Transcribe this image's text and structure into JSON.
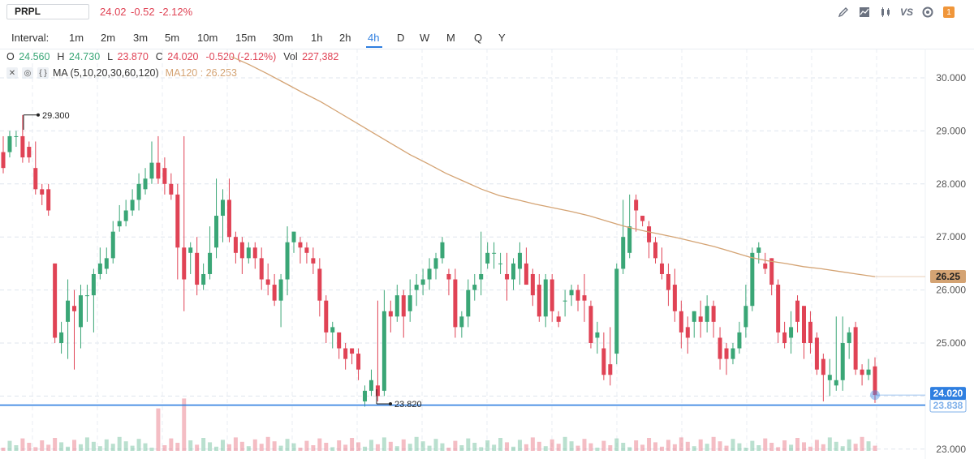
{
  "header": {
    "symbol": "PRPL",
    "last": "24.02",
    "change": "-0.52",
    "change_pct": "-2.12%"
  },
  "toolbar_icons": [
    "pencil-icon",
    "area-chart-icon",
    "candles-icon",
    "compare-vs-icon",
    "settings-icon",
    "notification-badge-icon"
  ],
  "toolbar": {
    "vs_label": "VS",
    "badge_count": "1"
  },
  "intervals": {
    "label": "Interval:",
    "items": [
      "1m",
      "2m",
      "3m",
      "5m",
      "10m",
      "15m",
      "30m",
      "1h",
      "2h",
      "4h",
      "D",
      "W",
      "M",
      "Q",
      "Y"
    ],
    "active": "4h"
  },
  "ohlc": {
    "o_label": "O",
    "o": "24.560",
    "h_label": "H",
    "h": "24.730",
    "l_label": "L",
    "l": "23.870",
    "c_label": "C",
    "c": "24.020",
    "chg": "-0.520 (-2.12%)",
    "vol_label": "Vol",
    "vol": "227,382"
  },
  "indicator": {
    "name": "MA (5,10,20,30,60,120)",
    "ma120_label": "MA120 : 26.253"
  },
  "colors": {
    "up": "#3aa676",
    "down": "#e04355",
    "ma120": "#d4a373",
    "accent": "#2f7fe0"
  },
  "chart_data": {
    "type": "candlestick",
    "y_ticks": [
      "30.000",
      "29.000",
      "28.000",
      "27.000",
      "26.000",
      "25.000",
      "23.000"
    ],
    "ylim": [
      22.9,
      30.4
    ],
    "price_tag_ma": "26.25",
    "price_tag_last": "24.020",
    "price_tag_line": "23.838",
    "high_annotation": "29.300",
    "low_annotation": "23.820",
    "horizontal_line": 23.83,
    "ma120": [
      30.4,
      30.25,
      30.08,
      29.9,
      29.72,
      29.55,
      29.35,
      29.15,
      28.95,
      28.75,
      28.55,
      28.38,
      28.2,
      28.05,
      27.9,
      27.78,
      27.7,
      27.62,
      27.55,
      27.48,
      27.4,
      27.3,
      27.2,
      27.12,
      27.05,
      26.98,
      26.9,
      26.82,
      26.72,
      26.62,
      26.55,
      26.5,
      26.44,
      26.4,
      26.35,
      26.3,
      26.253
    ],
    "candles": [
      [
        28.6,
        28.3,
        28.9,
        28.2
      ],
      [
        28.6,
        28.9,
        29.0,
        28.5
      ],
      [
        28.9,
        28.9,
        29.0,
        28.7
      ],
      [
        28.9,
        28.5,
        29.3,
        28.4
      ],
      [
        28.7,
        28.5,
        28.8,
        28.4
      ],
      [
        28.3,
        27.9,
        28.8,
        27.8
      ],
      [
        27.9,
        27.8,
        28.0,
        27.6
      ],
      [
        27.9,
        27.5,
        28.0,
        27.4
      ],
      [
        26.5,
        25.1,
        26.5,
        25.0
      ],
      [
        25.0,
        25.2,
        25.4,
        24.8
      ],
      [
        25.4,
        25.8,
        26.2,
        24.7
      ],
      [
        25.7,
        25.6,
        26.0,
        24.5
      ],
      [
        25.3,
        25.9,
        26.1,
        24.9
      ],
      [
        25.9,
        25.9,
        26.1,
        25.4
      ],
      [
        25.9,
        26.3,
        26.4,
        25.2
      ],
      [
        26.3,
        26.5,
        26.8,
        26.2
      ],
      [
        26.4,
        26.6,
        26.8,
        26.3
      ],
      [
        26.6,
        27.1,
        27.3,
        26.5
      ],
      [
        27.2,
        27.3,
        27.6,
        27.1
      ],
      [
        27.3,
        27.5,
        27.7,
        27.2
      ],
      [
        27.5,
        27.7,
        27.9,
        27.4
      ],
      [
        27.7,
        28.0,
        28.2,
        27.5
      ],
      [
        27.9,
        28.1,
        28.3,
        27.8
      ],
      [
        28.1,
        28.4,
        28.8,
        28.0
      ],
      [
        28.4,
        28.1,
        28.9,
        28.0
      ],
      [
        28.3,
        28.0,
        28.5,
        27.8
      ],
      [
        28.0,
        27.8,
        28.2,
        27.7
      ],
      [
        27.8,
        26.8,
        28.0,
        26.2
      ],
      [
        26.8,
        26.2,
        28.9,
        25.6
      ],
      [
        26.7,
        26.8,
        26.9,
        26.3
      ],
      [
        26.7,
        26.1,
        27.0,
        25.9
      ],
      [
        26.1,
        26.3,
        26.5,
        26.0
      ],
      [
        26.3,
        26.7,
        27.2,
        26.2
      ],
      [
        26.8,
        27.4,
        28.1,
        26.6
      ],
      [
        27.4,
        27.7,
        27.9,
        26.9
      ],
      [
        27.7,
        27.0,
        28.1,
        26.9
      ],
      [
        27.0,
        26.7,
        27.1,
        26.5
      ],
      [
        26.9,
        26.6,
        27.0,
        26.3
      ],
      [
        26.6,
        26.8,
        26.9,
        26.5
      ],
      [
        26.8,
        26.6,
        26.9,
        26.4
      ],
      [
        26.6,
        26.2,
        26.8,
        26.0
      ],
      [
        26.2,
        26.1,
        26.5,
        25.9
      ],
      [
        26.1,
        25.8,
        26.3,
        25.7
      ],
      [
        25.8,
        26.2,
        26.3,
        25.3
      ],
      [
        26.2,
        26.9,
        27.2,
        25.9
      ],
      [
        26.9,
        27.1,
        27.1,
        26.7
      ],
      [
        26.9,
        26.8,
        27.0,
        26.5
      ],
      [
        26.8,
        26.7,
        26.9,
        26.5
      ],
      [
        26.6,
        26.5,
        26.8,
        26.3
      ],
      [
        26.4,
        25.8,
        26.6,
        25.5
      ],
      [
        25.8,
        25.2,
        25.9,
        25.0
      ],
      [
        25.2,
        25.3,
        25.4,
        24.9
      ],
      [
        25.2,
        24.9,
        25.2,
        24.7
      ],
      [
        24.9,
        24.7,
        25.0,
        24.5
      ],
      [
        24.9,
        24.8,
        24.9,
        24.6
      ],
      [
        24.8,
        24.5,
        24.9,
        24.3
      ],
      [
        23.9,
        24.1,
        24.2,
        23.8
      ],
      [
        24.1,
        24.3,
        24.5,
        24.0
      ],
      [
        24.2,
        24.0,
        25.8,
        23.9
      ],
      [
        24.1,
        25.6,
        26.0,
        24.0
      ],
      [
        25.6,
        25.5,
        25.8,
        25.2
      ],
      [
        25.5,
        25.9,
        26.1,
        25.4
      ],
      [
        25.9,
        25.5,
        26.0,
        25.1
      ],
      [
        25.6,
        25.9,
        26.2,
        25.4
      ],
      [
        26.0,
        26.1,
        26.3,
        25.7
      ],
      [
        26.1,
        26.2,
        26.4,
        25.9
      ],
      [
        26.2,
        26.4,
        26.6,
        26.0
      ],
      [
        26.4,
        26.6,
        26.7,
        26.2
      ],
      [
        26.6,
        26.9,
        27.0,
        26.5
      ],
      [
        26.3,
        26.2,
        26.4,
        25.9
      ],
      [
        26.2,
        25.3,
        26.4,
        25.1
      ],
      [
        25.3,
        25.5,
        25.6,
        25.1
      ],
      [
        25.5,
        26.0,
        26.2,
        25.3
      ],
      [
        26.0,
        26.1,
        26.3,
        25.8
      ],
      [
        26.2,
        26.3,
        27.1,
        25.9
      ],
      [
        26.5,
        26.7,
        26.9,
        26.4
      ],
      [
        26.7,
        26.7,
        26.9,
        26.4
      ],
      [
        26.5,
        26.5,
        26.7,
        26.3
      ],
      [
        26.3,
        26.2,
        26.7,
        25.8
      ],
      [
        26.2,
        26.5,
        26.6,
        26.0
      ],
      [
        26.4,
        26.7,
        26.9,
        26.1
      ],
      [
        26.5,
        26.1,
        26.8,
        26.1
      ],
      [
        26.3,
        25.9,
        26.4,
        25.7
      ],
      [
        26.1,
        25.5,
        26.3,
        25.4
      ],
      [
        25.5,
        26.2,
        26.3,
        25.3
      ],
      [
        26.2,
        25.6,
        26.3,
        25.4
      ],
      [
        25.5,
        25.4,
        25.6,
        25.3
      ],
      [
        25.8,
        25.8,
        26.0,
        25.5
      ],
      [
        25.9,
        26.0,
        26.1,
        25.7
      ],
      [
        26.0,
        25.8,
        26.1,
        25.6
      ],
      [
        25.9,
        25.8,
        26.3,
        25.4
      ],
      [
        25.7,
        25.0,
        25.8,
        24.9
      ],
      [
        25.1,
        25.2,
        25.4,
        24.8
      ],
      [
        24.9,
        24.4,
        25.2,
        24.3
      ],
      [
        24.6,
        24.4,
        25.3,
        24.2
      ],
      [
        24.8,
        26.4,
        26.5,
        24.6
      ],
      [
        26.4,
        27.0,
        27.7,
        26.3
      ],
      [
        26.7,
        27.2,
        27.8,
        26.6
      ],
      [
        27.7,
        27.5,
        27.8,
        27.1
      ],
      [
        27.4,
        27.3,
        27.4,
        27.2
      ],
      [
        27.2,
        26.9,
        27.3,
        26.6
      ],
      [
        26.9,
        26.6,
        27.0,
        26.5
      ],
      [
        26.5,
        26.3,
        26.8,
        26.2
      ],
      [
        26.3,
        26.0,
        26.5,
        25.7
      ],
      [
        26.1,
        25.6,
        26.4,
        25.4
      ],
      [
        25.6,
        25.2,
        25.8,
        24.9
      ],
      [
        25.3,
        25.1,
        25.5,
        24.8
      ],
      [
        25.4,
        25.6,
        25.6,
        25.1
      ],
      [
        25.5,
        25.4,
        25.8,
        25.1
      ],
      [
        25.4,
        25.7,
        25.9,
        25.2
      ],
      [
        25.7,
        25.4,
        25.8,
        25.1
      ],
      [
        25.1,
        24.7,
        25.3,
        24.5
      ],
      [
        24.9,
        24.7,
        25.0,
        24.4
      ],
      [
        24.7,
        24.9,
        25.0,
        24.6
      ],
      [
        24.9,
        25.2,
        25.4,
        24.8
      ],
      [
        25.3,
        25.7,
        26.1,
        25.1
      ],
      [
        25.7,
        26.7,
        26.8,
        25.6
      ],
      [
        26.7,
        26.8,
        26.9,
        26.5
      ],
      [
        26.5,
        26.4,
        26.7,
        26.3
      ],
      [
        26.6,
        26.1,
        26.6,
        25.9
      ],
      [
        26.1,
        25.2,
        26.2,
        25.0
      ],
      [
        25.2,
        25.0,
        25.4,
        24.9
      ],
      [
        25.1,
        25.3,
        25.6,
        24.8
      ],
      [
        25.8,
        25.4,
        25.9,
        25.2
      ],
      [
        25.7,
        25.0,
        25.7,
        24.7
      ],
      [
        25.4,
        25.0,
        25.6,
        24.8
      ],
      [
        25.1,
        24.5,
        25.2,
        24.4
      ],
      [
        24.7,
        24.4,
        24.8,
        23.9
      ],
      [
        24.3,
        24.4,
        24.7,
        24.0
      ],
      [
        24.2,
        24.3,
        25.5,
        24.1
      ],
      [
        24.3,
        25.0,
        25.5,
        24.1
      ],
      [
        25.0,
        25.2,
        25.3,
        24.7
      ],
      [
        25.3,
        24.5,
        25.4,
        24.4
      ],
      [
        24.5,
        24.4,
        24.6,
        24.2
      ],
      [
        24.4,
        24.5,
        24.7,
        24.3
      ],
      [
        24.56,
        24.02,
        24.73,
        23.87
      ]
    ]
  }
}
